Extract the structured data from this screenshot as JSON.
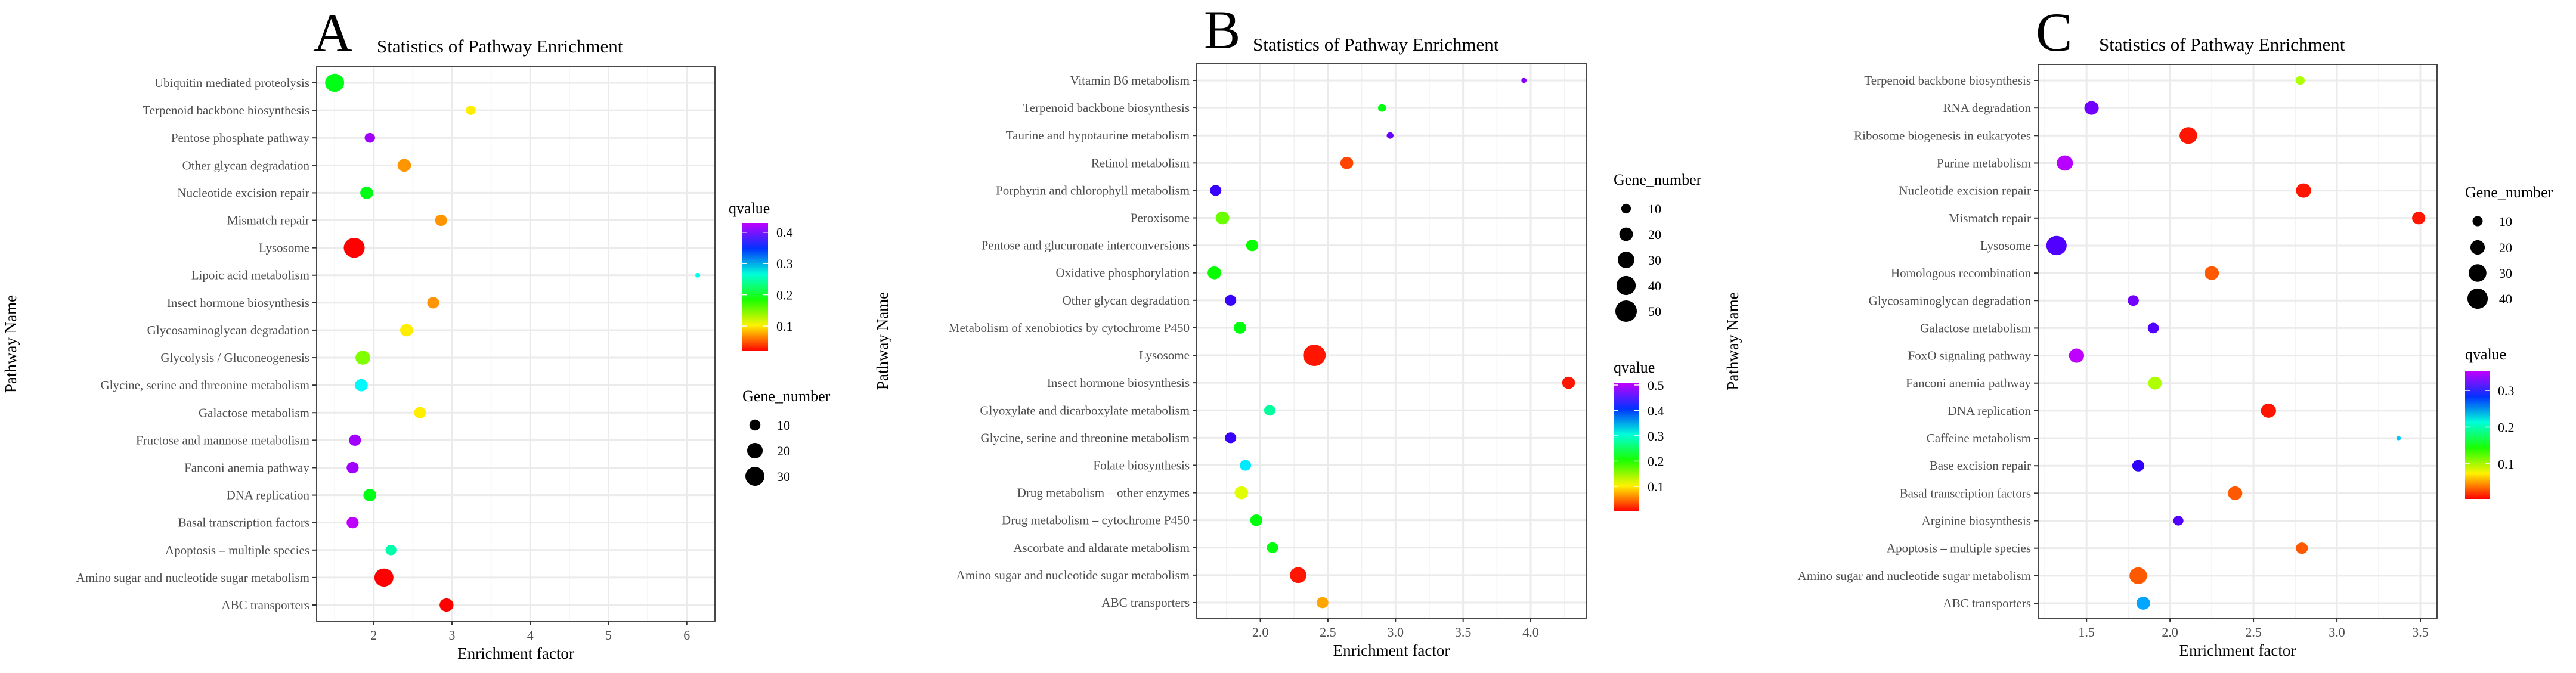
{
  "chart_data": [
    {
      "type": "scatter",
      "panel": "A",
      "title": "Statistics of Pathway Enrichment",
      "xlabel": "Enrichment factor",
      "ylabel": "Pathway Name",
      "xlim": [
        1.27,
        6.36
      ],
      "xticks": [
        2,
        3,
        4,
        5,
        6
      ],
      "xtick_labels": [
        "2",
        "3",
        "4",
        "5",
        "6"
      ],
      "grid": true,
      "legend_position": "right",
      "size_legend": {
        "title": "Gene_number",
        "values": [
          10,
          20,
          30
        ]
      },
      "color_legend": {
        "title": "qvalue",
        "range": [
          0.02,
          0.43
        ],
        "ticks": [
          0.4,
          0.3,
          0.2,
          0.1
        ],
        "tick_labels": [
          "0.4",
          "0.3",
          "0.2",
          "0.1"
        ]
      },
      "points": [
        {
          "pathway": "Ubiquitin mediated proteolysis",
          "x": 1.5,
          "gene_number": 30,
          "qvalue": 0.2
        },
        {
          "pathway": "Terpenoid backbone biosynthesis",
          "x": 3.24,
          "gene_number": 8,
          "qvalue": 0.1
        },
        {
          "pathway": "Pentose phosphate pathway",
          "x": 1.95,
          "gene_number": 9,
          "qvalue": 0.42
        },
        {
          "pathway": "Other glycan degradation",
          "x": 2.39,
          "gene_number": 15,
          "qvalue": 0.07
        },
        {
          "pathway": "Nucleotide excision repair",
          "x": 1.91,
          "gene_number": 14,
          "qvalue": 0.2
        },
        {
          "pathway": "Mismatch repair",
          "x": 2.86,
          "gene_number": 12,
          "qvalue": 0.07
        },
        {
          "pathway": "Lysosome",
          "x": 1.75,
          "gene_number": 36,
          "qvalue": 0.02
        },
        {
          "pathway": "Lipoic acid metabolism",
          "x": 6.14,
          "gene_number": 2,
          "qvalue": 0.27
        },
        {
          "pathway": "Insect hormone biosynthesis",
          "x": 2.76,
          "gene_number": 12,
          "qvalue": 0.07
        },
        {
          "pathway": "Glycosaminoglycan degradation",
          "x": 2.42,
          "gene_number": 14,
          "qvalue": 0.1
        },
        {
          "pathway": "Glycolysis / Gluconeogenesis",
          "x": 1.86,
          "gene_number": 18,
          "qvalue": 0.15
        },
        {
          "pathway": "Glycine, serine and threonine metabolism",
          "x": 1.84,
          "gene_number": 14,
          "qvalue": 0.28
        },
        {
          "pathway": "Galactose metabolism",
          "x": 2.59,
          "gene_number": 12,
          "qvalue": 0.1
        },
        {
          "pathway": "Fructose and mannose metabolism",
          "x": 1.76,
          "gene_number": 12,
          "qvalue": 0.42
        },
        {
          "pathway": "Fanconi anemia pathway",
          "x": 1.73,
          "gene_number": 12,
          "qvalue": 0.42
        },
        {
          "pathway": "DNA replication",
          "x": 1.95,
          "gene_number": 14,
          "qvalue": 0.2
        },
        {
          "pathway": "Basal transcription factors",
          "x": 1.73,
          "gene_number": 12,
          "qvalue": 0.43
        },
        {
          "pathway": "Apoptosis – multiple species",
          "x": 2.22,
          "gene_number": 10,
          "qvalue": 0.25
        },
        {
          "pathway": "Amino sugar and nucleotide sugar metabolism",
          "x": 2.13,
          "gene_number": 30,
          "qvalue": 0.02
        },
        {
          "pathway": "ABC transporters",
          "x": 2.93,
          "gene_number": 16,
          "qvalue": 0.02
        }
      ]
    },
    {
      "type": "scatter",
      "panel": "B",
      "title": "Statistics of Pathway Enrichment",
      "xlabel": "Enrichment factor",
      "ylabel": "Pathway Name",
      "xlim": [
        1.53,
        4.41
      ],
      "xticks": [
        2.0,
        2.5,
        3.0,
        3.5,
        4.0
      ],
      "xtick_labels": [
        "2.0",
        "2.5",
        "3.0",
        "3.5",
        "4.0"
      ],
      "grid": true,
      "legend_position": "right",
      "size_legend": {
        "title": "Gene_number",
        "values": [
          10,
          20,
          30,
          40,
          50
        ]
      },
      "color_legend": {
        "title": "qvalue",
        "range": [
          0.001,
          0.507
        ],
        "ticks": [
          0.5,
          0.4,
          0.3,
          0.2,
          0.1
        ],
        "tick_labels": [
          "0.5",
          "0.4",
          "0.3",
          "0.2",
          "0.1"
        ]
      },
      "points": [
        {
          "pathway": "Vitamin B6 metabolism",
          "x": 3.95,
          "gene_number": 3,
          "qvalue": 0.48
        },
        {
          "pathway": "Terpenoid backbone biosynthesis",
          "x": 2.9,
          "gene_number": 7,
          "qvalue": 0.22
        },
        {
          "pathway": "Taurine and hypotaurine metabolism",
          "x": 2.96,
          "gene_number": 5,
          "qvalue": 0.47
        },
        {
          "pathway": "Retinol metabolism",
          "x": 2.64,
          "gene_number": 18,
          "qvalue": 0.03
        },
        {
          "pathway": "Porphyrin and chlorophyll metabolism",
          "x": 1.67,
          "gene_number": 14,
          "qvalue": 0.45
        },
        {
          "pathway": "Peroxisome",
          "x": 1.72,
          "gene_number": 20,
          "qvalue": 0.17
        },
        {
          "pathway": "Pentose and glucuronate interconversions",
          "x": 1.94,
          "gene_number": 16,
          "qvalue": 0.21
        },
        {
          "pathway": "Oxidative phosphorylation",
          "x": 1.66,
          "gene_number": 20,
          "qvalue": 0.21
        },
        {
          "pathway": "Other glycan degradation",
          "x": 1.78,
          "gene_number": 14,
          "qvalue": 0.45
        },
        {
          "pathway": "Metabolism of xenobiotics by cytochrome P450",
          "x": 1.85,
          "gene_number": 17,
          "qvalue": 0.22
        },
        {
          "pathway": "Lysosome",
          "x": 2.4,
          "gene_number": 55,
          "qvalue": 0.01
        },
        {
          "pathway": "Insect hormone biosynthesis",
          "x": 4.28,
          "gene_number": 18,
          "qvalue": 0.01
        },
        {
          "pathway": "Glyoxylate and dicarboxylate metabolism",
          "x": 2.07,
          "gene_number": 14,
          "qvalue": 0.28
        },
        {
          "pathway": "Glycine, serine and threonine metabolism",
          "x": 1.78,
          "gene_number": 14,
          "qvalue": 0.45
        },
        {
          "pathway": "Folate biosynthesis",
          "x": 1.89,
          "gene_number": 14,
          "qvalue": 0.33
        },
        {
          "pathway": "Drug metabolism – other enzymes",
          "x": 1.86,
          "gene_number": 20,
          "qvalue": 0.12
        },
        {
          "pathway": "Drug metabolism – cytochrome P450",
          "x": 1.97,
          "gene_number": 16,
          "qvalue": 0.22
        },
        {
          "pathway": "Ascorbate and aldarate metabolism",
          "x": 2.09,
          "gene_number": 14,
          "qvalue": 0.22
        },
        {
          "pathway": "Amino sugar and nucleotide sugar metabolism",
          "x": 2.28,
          "gene_number": 30,
          "qvalue": 0.01
        },
        {
          "pathway": "ABC transporters",
          "x": 2.46,
          "gene_number": 15,
          "qvalue": 0.07
        }
      ]
    },
    {
      "type": "scatter",
      "panel": "C",
      "title": "Statistics of Pathway Enrichment",
      "xlabel": "Enrichment factor",
      "ylabel": "Pathway Name",
      "xlim": [
        1.21,
        3.6
      ],
      "xticks": [
        1.5,
        2.0,
        2.5,
        3.0,
        3.5
      ],
      "xtick_labels": [
        "1.5",
        "2.0",
        "2.5",
        "3.0",
        "3.5"
      ],
      "grid": true,
      "legend_position": "right",
      "size_legend": {
        "title": "Gene_number",
        "values": [
          10,
          20,
          30,
          40
        ]
      },
      "color_legend": {
        "title": "qvalue",
        "range": [
          0.004,
          0.352
        ],
        "ticks": [
          0.3,
          0.2,
          0.1
        ],
        "tick_labels": [
          "0.3",
          "0.2",
          "0.1"
        ]
      },
      "points": [
        {
          "pathway": "Terpenoid backbone biosynthesis",
          "x": 2.78,
          "gene_number": 8,
          "qvalue": 0.1
        },
        {
          "pathway": "RNA degradation",
          "x": 1.53,
          "gene_number": 20,
          "qvalue": 0.33
        },
        {
          "pathway": "Ribosome biogenesis in eukaryotes",
          "x": 2.11,
          "gene_number": 30,
          "qvalue": 0.01
        },
        {
          "pathway": "Purine metabolism",
          "x": 1.37,
          "gene_number": 25,
          "qvalue": 0.35
        },
        {
          "pathway": "Nucleotide excision repair",
          "x": 2.8,
          "gene_number": 22,
          "qvalue": 0.01
        },
        {
          "pathway": "Mismatch repair",
          "x": 3.49,
          "gene_number": 17,
          "qvalue": 0.01
        },
        {
          "pathway": "Lysosome",
          "x": 1.32,
          "gene_number": 40,
          "qvalue": 0.32
        },
        {
          "pathway": "Homologous recombination",
          "x": 2.25,
          "gene_number": 20,
          "qvalue": 0.03
        },
        {
          "pathway": "Glycosaminoglycan degradation",
          "x": 1.78,
          "gene_number": 12,
          "qvalue": 0.33
        },
        {
          "pathway": "Galactose metabolism",
          "x": 1.9,
          "gene_number": 12,
          "qvalue": 0.32
        },
        {
          "pathway": "FoxO signaling pathway",
          "x": 1.44,
          "gene_number": 22,
          "qvalue": 0.36
        },
        {
          "pathway": "Fanconi anemia pathway",
          "x": 1.91,
          "gene_number": 18,
          "qvalue": 0.1
        },
        {
          "pathway": "DNA replication",
          "x": 2.59,
          "gene_number": 22,
          "qvalue": 0.01
        },
        {
          "pathway": "Caffeine metabolism",
          "x": 3.37,
          "gene_number": 2,
          "qvalue": 0.24
        },
        {
          "pathway": "Base excision repair",
          "x": 1.81,
          "gene_number": 14,
          "qvalue": 0.31
        },
        {
          "pathway": "Basal transcription factors",
          "x": 2.39,
          "gene_number": 20,
          "qvalue": 0.03
        },
        {
          "pathway": "Arginine biosynthesis",
          "x": 2.05,
          "gene_number": 10,
          "qvalue": 0.32
        },
        {
          "pathway": "Apoptosis – multiple species",
          "x": 2.79,
          "gene_number": 14,
          "qvalue": 0.03
        },
        {
          "pathway": "Amino sugar and nucleotide sugar metabolism",
          "x": 1.81,
          "gene_number": 30,
          "qvalue": 0.03
        },
        {
          "pathway": "ABC transporters",
          "x": 1.84,
          "gene_number": 18,
          "qvalue": 0.25
        }
      ]
    }
  ]
}
